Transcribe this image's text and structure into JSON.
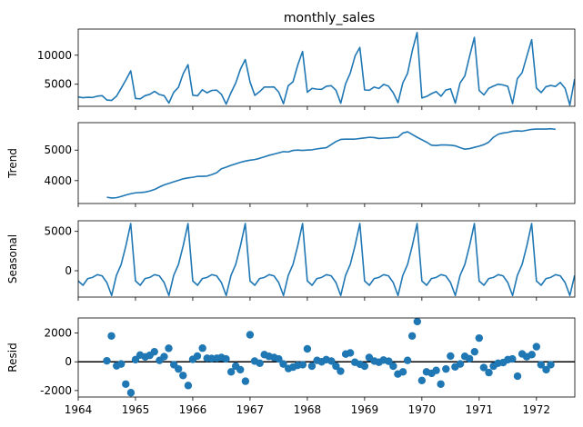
{
  "figure_title": "monthly_sales",
  "line_color": "#1f77b4",
  "marker_color": "#1f77b4",
  "zero_line_color": "#000000",
  "x_tick_labels": [
    "1964",
    "1965",
    "1966",
    "1967",
    "1968",
    "1969",
    "1970",
    "1971",
    "1972"
  ],
  "chart_data": [
    {
      "type": "line",
      "title": "monthly_sales",
      "ylabel": "",
      "xlim": [
        1964.0,
        1972.67
      ],
      "ylim": [
        1200,
        14500
      ],
      "yticks": [
        5000,
        10000
      ],
      "x_start": 1964.0,
      "x_step": 0.0833333,
      "values": [
        2815,
        2672,
        2755,
        2721,
        2946,
        3036,
        2282,
        2212,
        2922,
        4301,
        5764,
        7312,
        2541,
        2475,
        3031,
        3266,
        3776,
        3230,
        3028,
        1759,
        3595,
        4474,
        6838,
        8357,
        3113,
        3006,
        4047,
        3523,
        3937,
        3986,
        3260,
        1573,
        3528,
        5211,
        7614,
        9254,
        5375,
        3088,
        3718,
        4514,
        4520,
        4539,
        3663,
        1643,
        4739,
        5428,
        8314,
        10651,
        3633,
        4292,
        4154,
        4121,
        4647,
        4753,
        3965,
        1723,
        5048,
        6922,
        9858,
        11331,
        4016,
        3957,
        4510,
        4276,
        4968,
        4677,
        3523,
        1821,
        5222,
        6872,
        10803,
        13916,
        2639,
        2899,
        3370,
        3740,
        2927,
        3986,
        4217,
        1738,
        5221,
        6424,
        9842,
        13076,
        3934,
        3162,
        4286,
        4676,
        5010,
        4874,
        4633,
        1659,
        5951,
        6981,
        9851,
        12670,
        4348,
        3564,
        4577,
        4788,
        4618,
        5312,
        4298,
        1413,
        5877
      ]
    },
    {
      "type": "line",
      "ylabel": "Trend",
      "xlim": [
        1964.0,
        1972.67
      ],
      "ylim": [
        3250,
        5900
      ],
      "yticks": [
        4000,
        5000
      ],
      "x_start": 1964.5,
      "x_step": 0.0833333,
      "values": [
        3455,
        3430,
        3440,
        3480,
        3530,
        3570,
        3600,
        3610,
        3625,
        3660,
        3710,
        3790,
        3860,
        3910,
        3960,
        4010,
        4060,
        4090,
        4110,
        4140,
        4140,
        4150,
        4200,
        4260,
        4390,
        4440,
        4500,
        4550,
        4600,
        4640,
        4670,
        4690,
        4730,
        4780,
        4830,
        4870,
        4910,
        4950,
        4940,
        4990,
        5000,
        4990,
        5000,
        5010,
        5040,
        5060,
        5080,
        5180,
        5280,
        5350,
        5360,
        5360,
        5360,
        5380,
        5400,
        5420,
        5410,
        5380,
        5390,
        5400,
        5410,
        5420,
        5560,
        5600,
        5510,
        5420,
        5340,
        5260,
        5160,
        5150,
        5170,
        5170,
        5160,
        5140,
        5080,
        5030,
        5050,
        5090,
        5130,
        5180,
        5260,
        5420,
        5520,
        5560,
        5580,
        5620,
        5630,
        5620,
        5650,
        5680,
        5690,
        5690,
        5690,
        5700,
        5680
      ]
    },
    {
      "type": "line",
      "ylabel": "Seasonal",
      "xlim": [
        1964.0,
        1972.67
      ],
      "ylim": [
        -3350,
        6350
      ],
      "yticks": [
        0,
        5000
      ],
      "x_start": 1964.0,
      "x_step": 0.0833333,
      "pattern_values": [
        -1300,
        -1850,
        -1000,
        -850,
        -500,
        -650,
        -1500,
        -3150,
        -600,
        800,
        3200,
        6000
      ],
      "values_repeat_pattern": true,
      "length": 105
    },
    {
      "type": "scatter",
      "ylabel": "Resid",
      "xlim": [
        1964.0,
        1972.67
      ],
      "ylim": [
        -2450,
        3050
      ],
      "yticks": [
        -2000,
        0,
        2000
      ],
      "zero_line": true,
      "points": [
        [
          1964.5,
          70
        ],
        [
          1964.58,
          1800
        ],
        [
          1964.67,
          -280
        ],
        [
          1964.75,
          -150
        ],
        [
          1964.83,
          -1550
        ],
        [
          1964.92,
          -2150
        ],
        [
          1965.0,
          150
        ],
        [
          1965.08,
          470
        ],
        [
          1965.17,
          340
        ],
        [
          1965.25,
          450
        ],
        [
          1965.33,
          700
        ],
        [
          1965.42,
          100
        ],
        [
          1965.5,
          360
        ],
        [
          1965.58,
          940
        ],
        [
          1965.67,
          -200
        ],
        [
          1965.75,
          -500
        ],
        [
          1965.83,
          -950
        ],
        [
          1965.92,
          -1650
        ],
        [
          1966.0,
          170
        ],
        [
          1966.08,
          400
        ],
        [
          1966.17,
          950
        ],
        [
          1966.25,
          250
        ],
        [
          1966.33,
          230
        ],
        [
          1966.42,
          250
        ],
        [
          1966.5,
          300
        ],
        [
          1966.58,
          200
        ],
        [
          1966.67,
          -700
        ],
        [
          1966.75,
          -300
        ],
        [
          1966.83,
          -550
        ],
        [
          1966.92,
          -1350
        ],
        [
          1967.0,
          1880
        ],
        [
          1967.08,
          50
        ],
        [
          1967.17,
          -100
        ],
        [
          1967.25,
          500
        ],
        [
          1967.33,
          380
        ],
        [
          1967.42,
          300
        ],
        [
          1967.5,
          200
        ],
        [
          1967.58,
          -150
        ],
        [
          1967.67,
          -470
        ],
        [
          1967.75,
          -370
        ],
        [
          1967.83,
          -250
        ],
        [
          1967.92,
          -200
        ],
        [
          1968.0,
          900
        ],
        [
          1968.08,
          -300
        ],
        [
          1968.17,
          100
        ],
        [
          1968.25,
          0
        ],
        [
          1968.33,
          150
        ],
        [
          1968.42,
          50
        ],
        [
          1968.5,
          -300
        ],
        [
          1968.58,
          -650
        ],
        [
          1968.67,
          540
        ],
        [
          1968.75,
          620
        ],
        [
          1968.83,
          -30
        ],
        [
          1968.92,
          -170
        ],
        [
          1969.0,
          -300
        ],
        [
          1969.08,
          300
        ],
        [
          1969.17,
          50
        ],
        [
          1969.25,
          -30
        ],
        [
          1969.33,
          120
        ],
        [
          1969.42,
          40
        ],
        [
          1969.5,
          -300
        ],
        [
          1969.58,
          -850
        ],
        [
          1969.67,
          -700
        ],
        [
          1969.75,
          100
        ],
        [
          1969.83,
          1800
        ],
        [
          1969.92,
          2800
        ],
        [
          1970.0,
          -1300
        ],
        [
          1970.08,
          -700
        ],
        [
          1970.17,
          -800
        ],
        [
          1970.25,
          -600
        ],
        [
          1970.33,
          -1550
        ],
        [
          1970.42,
          -500
        ],
        [
          1970.5,
          400
        ],
        [
          1970.58,
          -350
        ],
        [
          1970.67,
          -150
        ],
        [
          1970.75,
          380
        ],
        [
          1970.83,
          220
        ],
        [
          1970.92,
          700
        ],
        [
          1971.0,
          1650
        ],
        [
          1971.08,
          -400
        ],
        [
          1971.17,
          -750
        ],
        [
          1971.25,
          -300
        ],
        [
          1971.33,
          -100
        ],
        [
          1971.42,
          -50
        ],
        [
          1971.5,
          150
        ],
        [
          1971.58,
          200
        ],
        [
          1971.67,
          -1000
        ],
        [
          1971.75,
          550
        ],
        [
          1971.83,
          350
        ],
        [
          1971.92,
          500
        ],
        [
          1972.0,
          1050
        ],
        [
          1972.08,
          -200
        ],
        [
          1972.17,
          -550
        ],
        [
          1972.25,
          -200
        ]
      ]
    }
  ]
}
